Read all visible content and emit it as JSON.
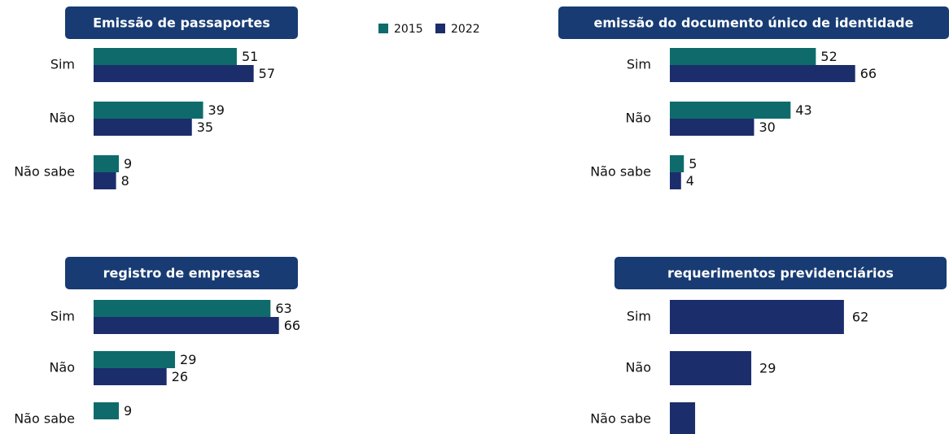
{
  "chart_data": [
    {
      "type": "bar",
      "orientation": "horizontal",
      "title": "Emissão de passaportes",
      "categories": [
        "Sim",
        "Não",
        "Não sabe"
      ],
      "xlim": [
        0,
        100
      ],
      "series": [
        {
          "name": "2015",
          "color": "#0f6b6b",
          "values": [
            51,
            39,
            9
          ]
        },
        {
          "name": "2022",
          "color": "#1b2d6b",
          "values": [
            57,
            35,
            8
          ]
        }
      ]
    },
    {
      "type": "bar",
      "orientation": "horizontal",
      "title": "emissão do documento único de identidade",
      "categories": [
        "Sim",
        "Não",
        "Não sabe"
      ],
      "xlim": [
        0,
        100
      ],
      "series": [
        {
          "color": "#0f6b6b",
          "values": [
            52,
            43,
            5
          ]
        },
        {
          "color": "#1b2d6b",
          "values": [
            66,
            30,
            4
          ]
        }
      ]
    },
    {
      "type": "bar",
      "orientation": "horizontal",
      "title": "registro de empresas",
      "categories": [
        "Sim",
        "Não",
        "Não sabe"
      ],
      "xlim": [
        0,
        100
      ],
      "series": [
        {
          "color": "#0f6b6b",
          "values": [
            63,
            29,
            9
          ]
        },
        {
          "color": "#1b2d6b",
          "values": [
            66,
            26,
            null
          ]
        }
      ]
    },
    {
      "type": "bar",
      "orientation": "horizontal",
      "title": "requerimentos previdenciários",
      "categories": [
        "Sim",
        "Não",
        "Não sabe"
      ],
      "xlim": [
        0,
        100
      ],
      "series": [
        {
          "color": "#1b2d6b",
          "values": [
            62,
            29,
            9
          ],
          "value_labels": [
            "62",
            "29",
            null
          ]
        }
      ]
    }
  ]
}
